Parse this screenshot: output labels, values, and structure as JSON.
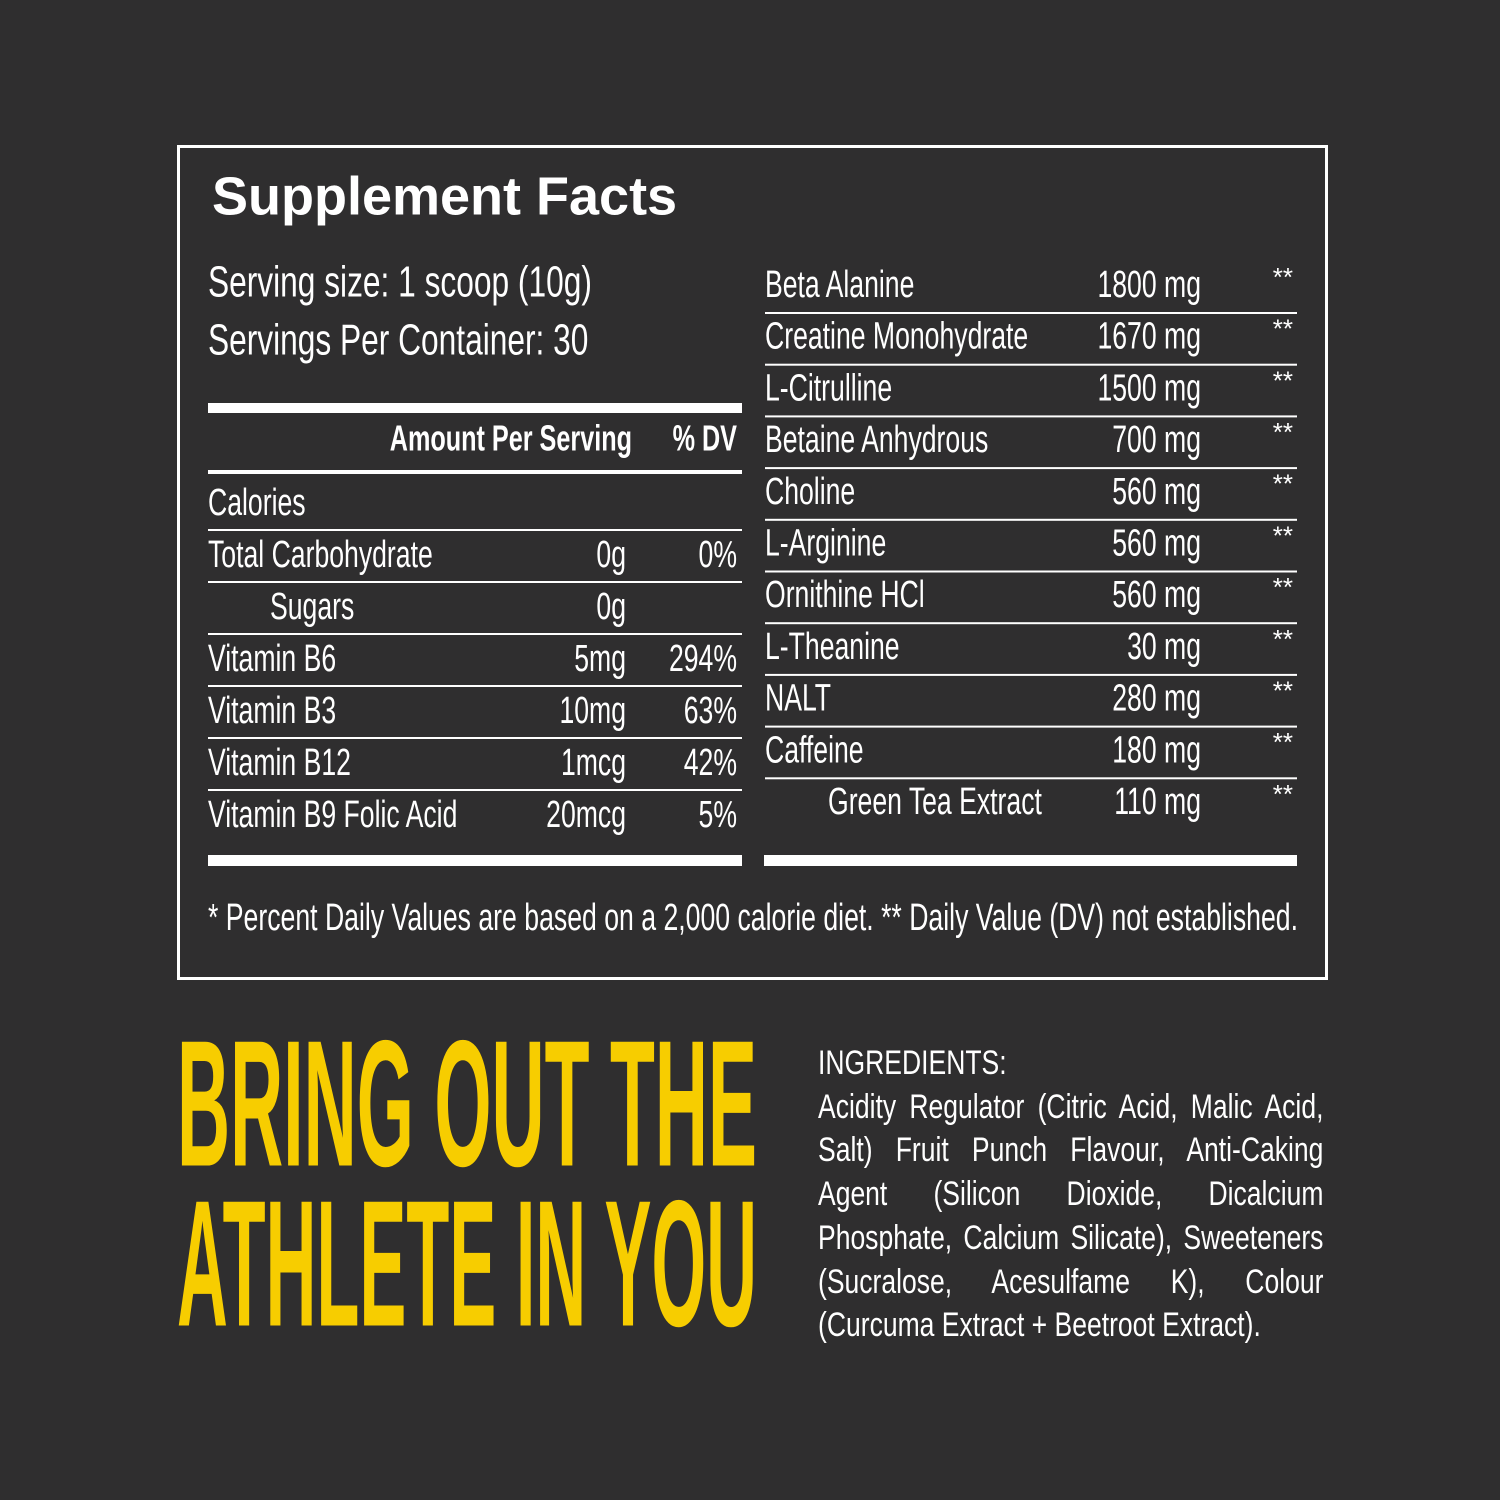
{
  "title": "Supplement Facts",
  "serving": [
    "Serving size: 1 scoop (10g)",
    "Servings Per Container: 30"
  ],
  "left_table": {
    "header": [
      "Amount Per Serving",
      "% DV"
    ],
    "rows": [
      {
        "name": "Calories"
      },
      {
        "name": "Total Carbohydrate",
        "amount": "0g",
        "dv": "0%"
      },
      {
        "name": "Sugars",
        "amount": "0g"
      },
      {
        "name": "Vitamin B6",
        "amount": "5mg",
        "dv": "294%"
      },
      {
        "name": "Vitamin B3",
        "amount": "10mg",
        "dv": "63%"
      },
      {
        "name": "Vitamin B12",
        "amount": "1mcg",
        "dv": "42%"
      },
      {
        "name": "Vitamin B9 Folic Acid",
        "amount": "20mcg",
        "dv": "5%"
      }
    ]
  },
  "right_table": {
    "rows": [
      {
        "name": "Beta Alanine",
        "amount": "1800 mg",
        "dv": "**"
      },
      {
        "name": "Creatine Monohydrate",
        "amount": "1670 mg",
        "dv": "**"
      },
      {
        "name": "L-Citrulline",
        "amount": "1500 mg",
        "dv": "**"
      },
      {
        "name": "Betaine Anhydrous",
        "amount": "700 mg",
        "dv": "**"
      },
      {
        "name": "Choline",
        "amount": "560 mg",
        "dv": "**"
      },
      {
        "name": "L-Arginine",
        "amount": "560 mg",
        "dv": "**"
      },
      {
        "name": "Ornithine HCl",
        "amount": "560 mg",
        "dv": "**"
      },
      {
        "name": "L-Theanine",
        "amount": "30 mg",
        "dv": "**"
      },
      {
        "name": "NALT",
        "amount": "280 mg",
        "dv": "**"
      },
      {
        "name": "Caffeine",
        "amount": "180 mg",
        "dv": "**"
      },
      {
        "name": "Green Tea Extract",
        "amount": "110 mg",
        "dv": "**"
      }
    ]
  },
  "footnote": "* Percent Daily Values are based on a 2,000 calorie diet. **  Daily Value (DV) not established.",
  "tagline": [
    "BRING OUT THE",
    "ATHLETE IN YOU"
  ],
  "ingredients": {
    "heading": "INGREDIENTS:",
    "text": "Acidity Regulator (Citric Acid, Malic Acid, Salt) Fruit Punch Flavour, Anti-Caking Agent (Silicon Dioxide, Dicalcium Phosphate, Calcium Silicate), Sweeteners (Sucralose, Acesulfame K), Colour (Curcuma Extract + Beetroot Extract)."
  }
}
